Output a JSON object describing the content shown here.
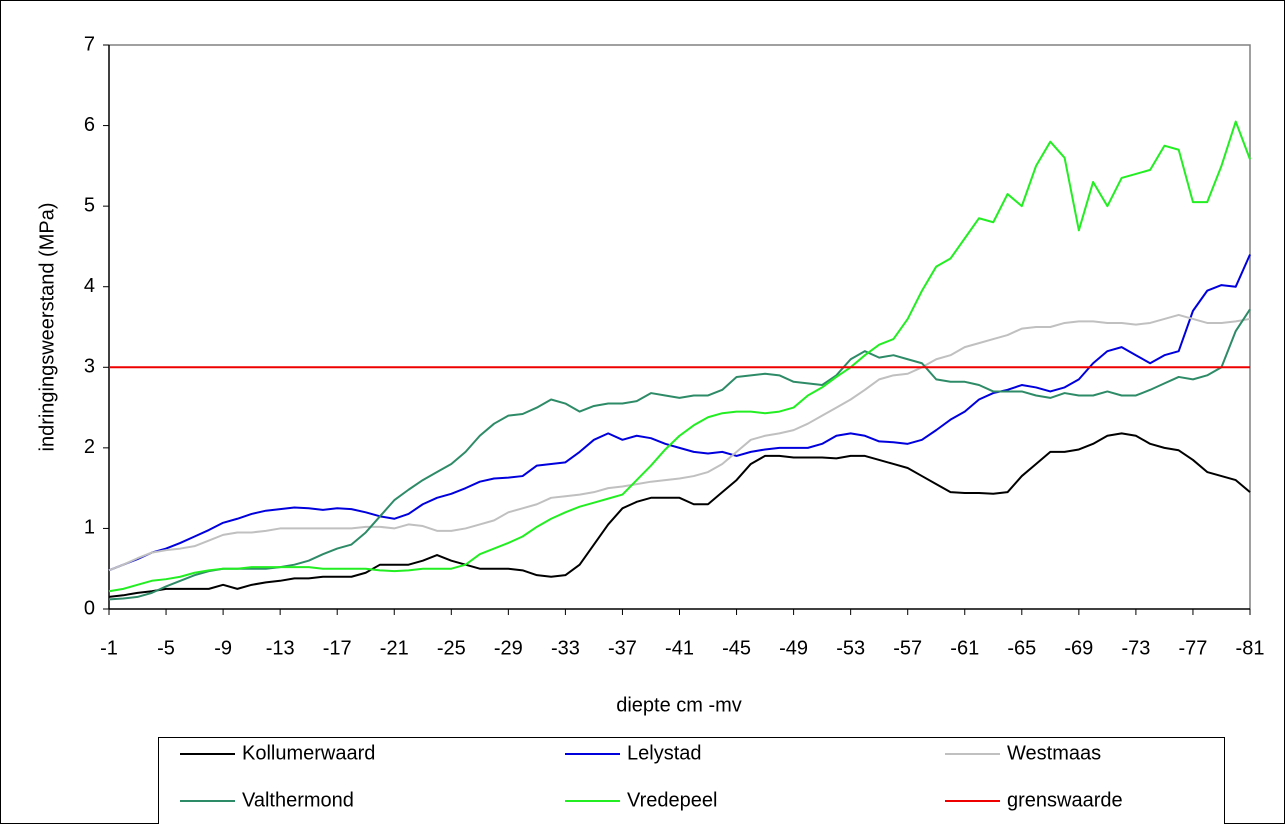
{
  "chart_data": {
    "type": "line",
    "ylabel": "indringingsweerstand (MPa)",
    "xlabel": "diepte cm -mv",
    "x": [
      -1,
      -2,
      -3,
      -4,
      -5,
      -6,
      -7,
      -8,
      -9,
      -10,
      -11,
      -12,
      -13,
      -14,
      -15,
      -16,
      -17,
      -18,
      -19,
      -20,
      -21,
      -22,
      -23,
      -24,
      -25,
      -26,
      -27,
      -28,
      -29,
      -30,
      -31,
      -32,
      -33,
      -34,
      -35,
      -36,
      -37,
      -38,
      -39,
      -40,
      -41,
      -42,
      -43,
      -44,
      -45,
      -46,
      -47,
      -48,
      -49,
      -50,
      -51,
      -52,
      -53,
      -54,
      -55,
      -56,
      -57,
      -58,
      -59,
      -60,
      -61,
      -62,
      -63,
      -64,
      -65,
      -66,
      -67,
      -68,
      -69,
      -70,
      -71,
      -72,
      -73,
      -74,
      -75,
      -76,
      -77,
      -78,
      -79,
      -80,
      -81
    ],
    "xlim": [
      -1,
      -81
    ],
    "xticks": [
      -1,
      -5,
      -9,
      -13,
      -17,
      -21,
      -25,
      -29,
      -33,
      -37,
      -41,
      -45,
      -49,
      -53,
      -57,
      -61,
      -65,
      -69,
      -73,
      -77,
      -81
    ],
    "ylim": [
      0,
      7
    ],
    "yticks": [
      0,
      1,
      2,
      3,
      4,
      5,
      6,
      7
    ],
    "grid": false,
    "legend": "bottom",
    "series": [
      {
        "name": "Kollumerwaard",
        "color": "#000000",
        "values": [
          0.15,
          0.17,
          0.2,
          0.22,
          0.25,
          0.25,
          0.25,
          0.25,
          0.3,
          0.25,
          0.3,
          0.33,
          0.35,
          0.38,
          0.38,
          0.4,
          0.4,
          0.4,
          0.45,
          0.55,
          0.55,
          0.55,
          0.6,
          0.67,
          0.6,
          0.55,
          0.5,
          0.5,
          0.5,
          0.48,
          0.42,
          0.4,
          0.42,
          0.55,
          0.8,
          1.05,
          1.25,
          1.33,
          1.38,
          1.38,
          1.38,
          1.3,
          1.3,
          1.45,
          1.6,
          1.8,
          1.9,
          1.9,
          1.88,
          1.88,
          1.88,
          1.87,
          1.9,
          1.9,
          1.85,
          1.8,
          1.75,
          1.65,
          1.55,
          1.45,
          1.44,
          1.44,
          1.43,
          1.45,
          1.65,
          1.8,
          1.95,
          1.95,
          1.98,
          2.05,
          2.15,
          2.18,
          2.15,
          2.05,
          2.0,
          1.97,
          1.85,
          1.7,
          1.65,
          1.6,
          1.45
        ]
      },
      {
        "name": "Lelystad",
        "color": "#0000dd",
        "values": [
          0.48,
          0.55,
          0.62,
          0.7,
          0.75,
          0.82,
          0.9,
          0.98,
          1.07,
          1.12,
          1.18,
          1.22,
          1.24,
          1.26,
          1.25,
          1.23,
          1.25,
          1.24,
          1.2,
          1.15,
          1.12,
          1.18,
          1.3,
          1.38,
          1.43,
          1.5,
          1.58,
          1.62,
          1.63,
          1.65,
          1.78,
          1.8,
          1.82,
          1.95,
          2.1,
          2.18,
          2.1,
          2.15,
          2.12,
          2.05,
          2.0,
          1.95,
          1.93,
          1.95,
          1.9,
          1.95,
          1.98,
          2.0,
          2.0,
          2.0,
          2.05,
          2.15,
          2.18,
          2.15,
          2.08,
          2.07,
          2.05,
          2.1,
          2.22,
          2.35,
          2.45,
          2.6,
          2.68,
          2.72,
          2.78,
          2.75,
          2.7,
          2.75,
          2.85,
          3.05,
          3.2,
          3.25,
          3.15,
          3.05,
          3.15,
          3.2,
          3.7,
          3.95,
          4.02,
          4.0,
          4.4
        ]
      },
      {
        "name": "Westmaas",
        "color": "#c0c0c0",
        "values": [
          0.48,
          0.55,
          0.63,
          0.7,
          0.73,
          0.75,
          0.78,
          0.85,
          0.92,
          0.95,
          0.95,
          0.97,
          1.0,
          1.0,
          1.0,
          1.0,
          1.0,
          1.0,
          1.02,
          1.02,
          1.0,
          1.05,
          1.03,
          0.97,
          0.97,
          1.0,
          1.05,
          1.1,
          1.2,
          1.25,
          1.3,
          1.38,
          1.4,
          1.42,
          1.45,
          1.5,
          1.52,
          1.55,
          1.58,
          1.6,
          1.62,
          1.65,
          1.7,
          1.8,
          1.95,
          2.1,
          2.15,
          2.18,
          2.22,
          2.3,
          2.4,
          2.5,
          2.6,
          2.72,
          2.85,
          2.9,
          2.92,
          3.0,
          3.1,
          3.15,
          3.25,
          3.3,
          3.35,
          3.4,
          3.48,
          3.5,
          3.5,
          3.55,
          3.57,
          3.57,
          3.55,
          3.55,
          3.53,
          3.55,
          3.6,
          3.65,
          3.6,
          3.55,
          3.55,
          3.57,
          3.6
        ]
      },
      {
        "name": "Valthermond",
        "color": "#2e8b68",
        "values": [
          0.12,
          0.13,
          0.15,
          0.2,
          0.28,
          0.35,
          0.42,
          0.47,
          0.5,
          0.5,
          0.5,
          0.5,
          0.52,
          0.55,
          0.6,
          0.68,
          0.75,
          0.8,
          0.95,
          1.15,
          1.35,
          1.48,
          1.6,
          1.7,
          1.8,
          1.95,
          2.15,
          2.3,
          2.4,
          2.42,
          2.5,
          2.6,
          2.55,
          2.45,
          2.52,
          2.55,
          2.55,
          2.58,
          2.68,
          2.65,
          2.62,
          2.65,
          2.65,
          2.72,
          2.88,
          2.9,
          2.92,
          2.9,
          2.82,
          2.8,
          2.78,
          2.9,
          3.1,
          3.2,
          3.12,
          3.15,
          3.1,
          3.05,
          2.85,
          2.82,
          2.82,
          2.78,
          2.7,
          2.7,
          2.7,
          2.65,
          2.62,
          2.68,
          2.65,
          2.65,
          2.7,
          2.65,
          2.65,
          2.72,
          2.8,
          2.88,
          2.85,
          2.9,
          3.0,
          3.45,
          3.72
        ]
      },
      {
        "name": "Vredepeel",
        "color": "#22ee22",
        "values": [
          0.22,
          0.25,
          0.3,
          0.35,
          0.37,
          0.4,
          0.45,
          0.48,
          0.5,
          0.5,
          0.52,
          0.52,
          0.52,
          0.52,
          0.52,
          0.5,
          0.5,
          0.5,
          0.5,
          0.48,
          0.47,
          0.48,
          0.5,
          0.5,
          0.5,
          0.55,
          0.68,
          0.75,
          0.82,
          0.9,
          1.02,
          1.12,
          1.2,
          1.27,
          1.32,
          1.37,
          1.42,
          1.6,
          1.78,
          1.98,
          2.15,
          2.28,
          2.38,
          2.43,
          2.45,
          2.45,
          2.43,
          2.45,
          2.5,
          2.65,
          2.75,
          2.88,
          3.0,
          3.15,
          3.28,
          3.35,
          3.6,
          3.95,
          4.25,
          4.35,
          4.6,
          4.85,
          4.8,
          5.15,
          5.0,
          5.5,
          5.8,
          5.6,
          4.7,
          5.3,
          5.0,
          5.35,
          5.4,
          5.45,
          5.75,
          5.7,
          5.05,
          5.05,
          5.5,
          6.05,
          5.58
        ]
      },
      {
        "name": "grenswaarde",
        "color": "#ee0000",
        "values": [
          3,
          3,
          3,
          3,
          3,
          3,
          3,
          3,
          3,
          3,
          3,
          3,
          3,
          3,
          3,
          3,
          3,
          3,
          3,
          3,
          3,
          3,
          3,
          3,
          3,
          3,
          3,
          3,
          3,
          3,
          3,
          3,
          3,
          3,
          3,
          3,
          3,
          3,
          3,
          3,
          3,
          3,
          3,
          3,
          3,
          3,
          3,
          3,
          3,
          3,
          3,
          3,
          3,
          3,
          3,
          3,
          3,
          3,
          3,
          3,
          3,
          3,
          3,
          3,
          3,
          3,
          3,
          3,
          3,
          3,
          3,
          3,
          3,
          3,
          3,
          3,
          3,
          3,
          3,
          3,
          3
        ]
      }
    ]
  }
}
